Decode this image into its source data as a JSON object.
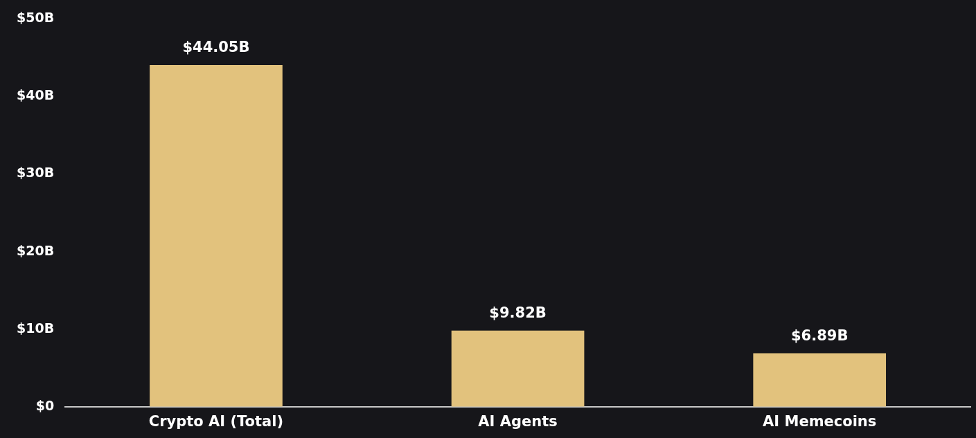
{
  "chart_data": {
    "type": "bar",
    "categories": [
      "Crypto AI (Total)",
      "AI Agents",
      "AI Memecoins"
    ],
    "values": [
      44.05,
      9.82,
      6.89
    ],
    "color": "#e2c27d",
    "value_labels": [
      "$44.05B",
      "$9.82B",
      "$6.89B"
    ],
    "ylim": [
      0,
      50
    ],
    "yticks": [
      {
        "value": 0,
        "label": "$0"
      },
      {
        "value": 10,
        "label": "$10B"
      },
      {
        "value": 20,
        "label": "$20B"
      },
      {
        "value": 30,
        "label": "$30B"
      },
      {
        "value": 40,
        "label": "$40B"
      },
      {
        "value": 50,
        "label": "$50B"
      }
    ],
    "grid": false,
    "legend": false
  }
}
